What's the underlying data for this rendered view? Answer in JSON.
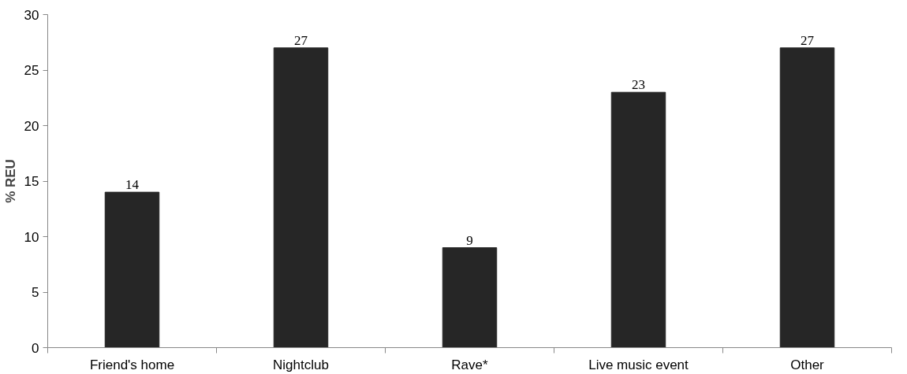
{
  "chart_data": {
    "type": "bar",
    "ylabel": "% REU",
    "categories": [
      "Friend's home",
      "Nightclub",
      "Rave*",
      "Live music event",
      "Other"
    ],
    "values": [
      14,
      27,
      9,
      23,
      27
    ],
    "color": "#262626",
    "ylim": [
      0,
      30
    ],
    "yticks": [
      0,
      5,
      10,
      15,
      20,
      25,
      30
    ],
    "grid": false,
    "data_labels": true
  }
}
